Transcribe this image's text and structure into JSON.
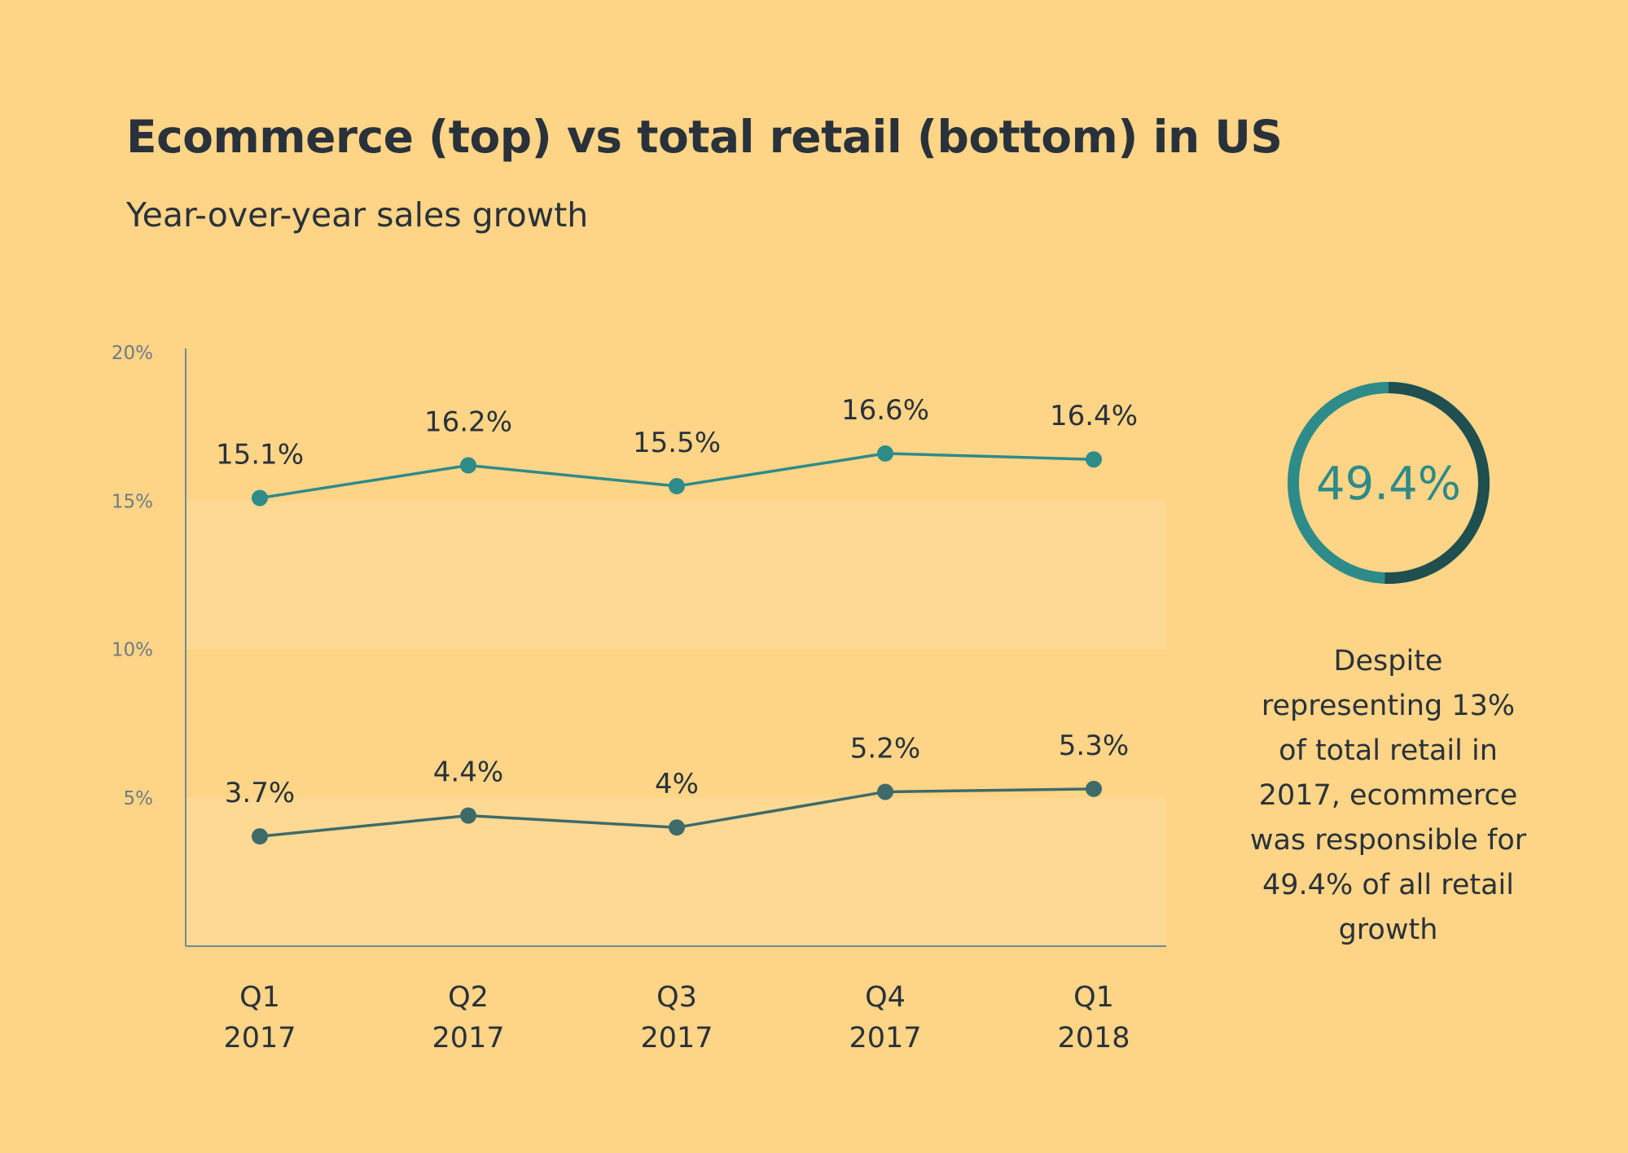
{
  "chart_data": {
    "type": "line",
    "title": "Ecommerce (top) vs total retail (bottom) in US",
    "subtitle": "Year-over-year sales growth",
    "categories": [
      [
        "Q1",
        "2017"
      ],
      [
        "Q2",
        "2017"
      ],
      [
        "Q3",
        "2017"
      ],
      [
        "Q4",
        "2017"
      ],
      [
        "Q1",
        "2018"
      ]
    ],
    "series": [
      {
        "values": [
          15.1,
          16.2,
          15.5,
          16.6,
          16.4
        ],
        "labels": [
          "15.1%",
          "16.2%",
          "15.5%",
          "16.6%",
          "16.4%"
        ],
        "color": "#2d8b89"
      },
      {
        "values": [
          3.7,
          4.4,
          4,
          5.2,
          5.3
        ],
        "labels": [
          "3.7%",
          "4.4%",
          "4%",
          "5.2%",
          "5.3%"
        ],
        "color": "#3e6b6a"
      }
    ],
    "ylim": [
      0,
      20
    ],
    "yticks": [
      5,
      10,
      15,
      20
    ],
    "ytick_labels": [
      "5%",
      "10%",
      "15%",
      "20%"
    ],
    "bands": [
      [
        0,
        5
      ],
      [
        10,
        15
      ]
    ],
    "band_color": "#fed993",
    "axis_color": "#6e8a99"
  },
  "donut": {
    "value": 49.4,
    "label": "49.4%",
    "color": "#2d8b89",
    "remainder_color": "#1f4f4f"
  },
  "note": "Despite representing 13% of total retail in 2017, ecommerce was responsible for 49.4% of all retail growth"
}
